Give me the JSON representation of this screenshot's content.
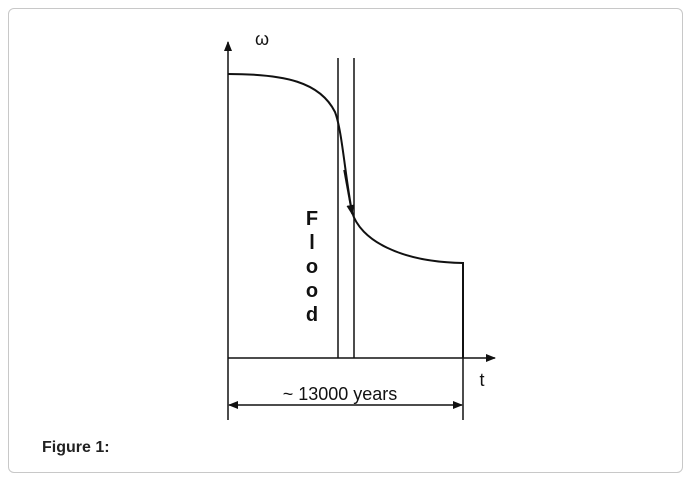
{
  "figure": {
    "y_label": "ω",
    "x_label": "t",
    "band_label": "Flood",
    "span_label": "~ 13000 years",
    "caption": "Figure 1:"
  }
}
